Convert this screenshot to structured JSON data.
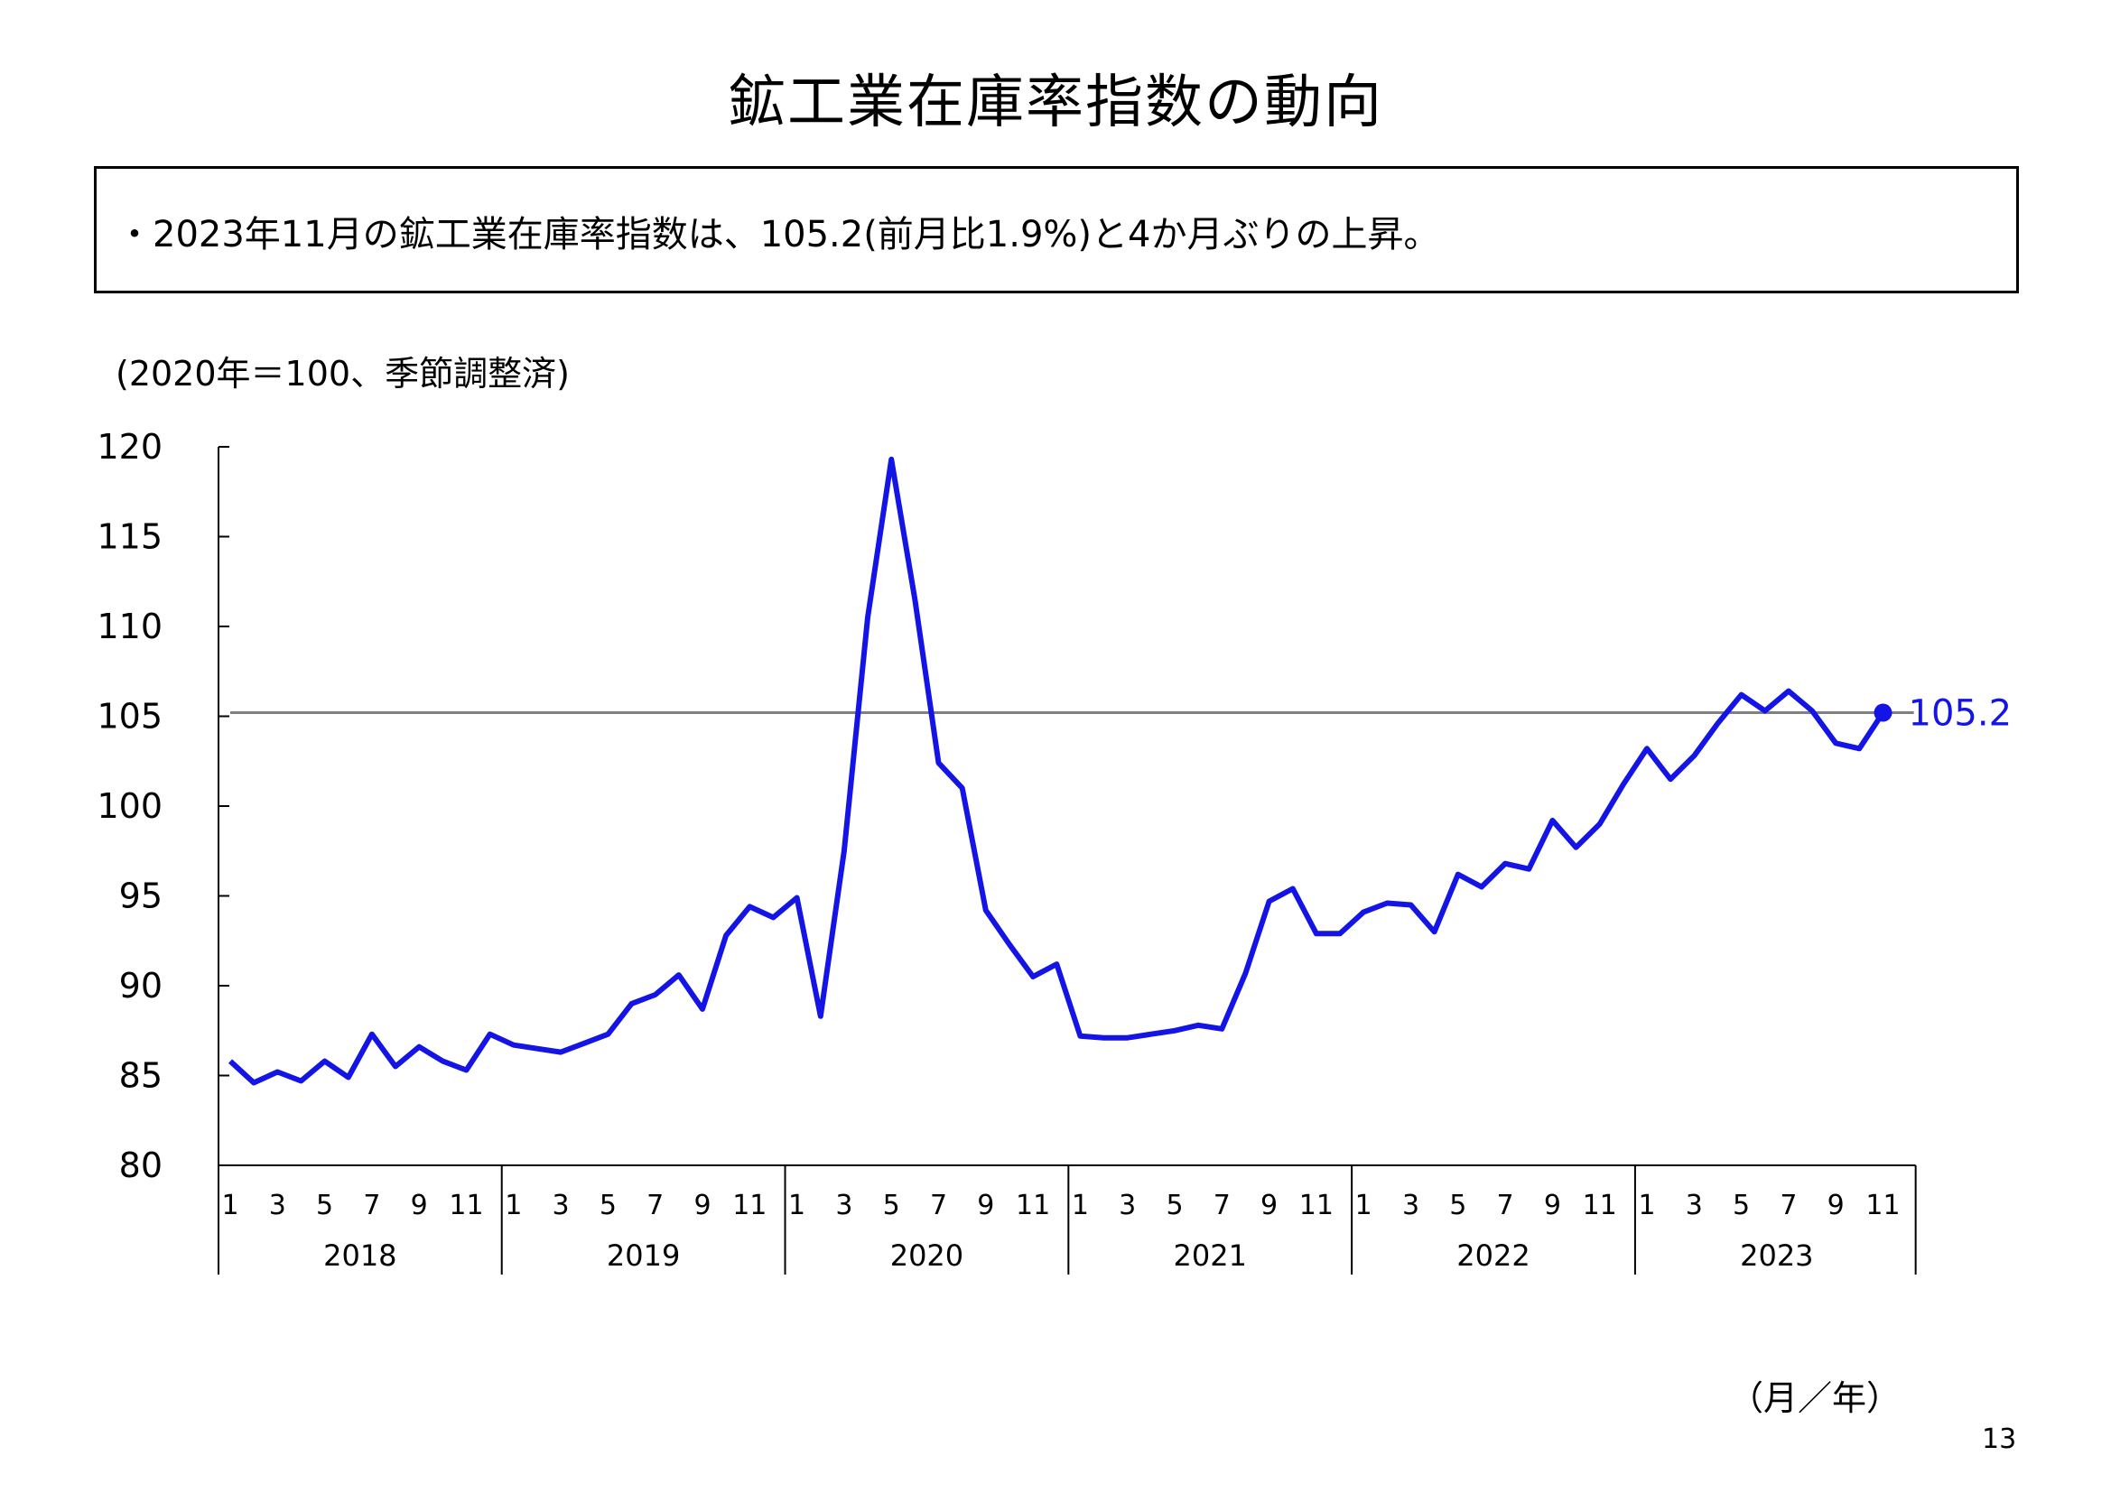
{
  "title": "鉱工業在庫率指数の動向",
  "summary": "・2023年11月の鉱工業在庫率指数は、105.2(前月比1.9%)と4か月ぶりの上昇。",
  "unit_note": "(2020年＝100、季節調整済)",
  "x_axis_unit": "（月／年）",
  "page_number": "13",
  "colors": {
    "series": "#1414e6",
    "reference_line": "#808080",
    "axis": "#000000"
  },
  "chart_data": {
    "type": "line",
    "ylim": [
      80,
      120
    ],
    "yticks": [
      "80",
      "85",
      "90",
      "95",
      "100",
      "105",
      "110",
      "115",
      "120"
    ],
    "month_tick_labels": [
      "1",
      "3",
      "5",
      "7",
      "9",
      "11"
    ],
    "years": [
      "2018",
      "2019",
      "2020",
      "2021",
      "2022",
      "2023"
    ],
    "grid": false,
    "reference_line": 105.2,
    "last_point_label": "105.2",
    "series": [
      {
        "values": [
          85.8,
          84.6,
          85.2,
          84.7,
          85.8,
          84.9,
          87.3,
          85.5,
          86.6,
          85.8,
          85.3,
          87.3,
          86.7,
          86.5,
          86.3,
          86.8,
          87.3,
          89.0,
          89.5,
          90.6,
          88.7,
          92.8,
          94.4,
          93.8,
          94.9,
          88.3,
          97.5,
          110.5,
          119.3,
          111.5,
          102.4,
          101.0,
          94.2,
          92.3,
          90.5,
          91.2,
          87.2,
          87.1,
          87.1,
          87.3,
          87.5,
          87.8,
          87.6,
          90.7,
          94.7,
          95.4,
          92.9,
          92.9,
          94.1,
          94.6,
          94.5,
          93.0,
          96.2,
          95.5,
          96.8,
          96.5,
          99.2,
          97.7,
          99.0,
          101.2,
          103.2,
          101.5,
          102.8,
          104.6,
          106.2,
          105.3,
          106.4,
          105.3,
          103.5,
          103.2,
          105.2
        ]
      }
    ]
  }
}
